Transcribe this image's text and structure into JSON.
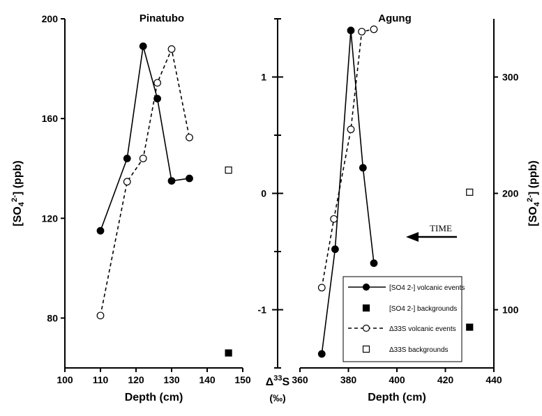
{
  "chart_data": [
    {
      "type": "line",
      "title": "Pinatubo",
      "xlabel": "Depth (cm)",
      "ylabel": "[SO4 2-] (ppb)",
      "xlim": [
        100,
        150
      ],
      "ylim": [
        60,
        200
      ],
      "x_ticks": [
        "100",
        "110",
        "120",
        "130",
        "140",
        "150"
      ],
      "y_ticks": [
        "80",
        "120",
        "160",
        "200"
      ],
      "series": [
        {
          "name": "[SO4 2-] volcanic events",
          "style": "solid-filled-circle",
          "axis": "sulfate",
          "points": [
            [
              110,
              115
            ],
            [
              117.5,
              144
            ],
            [
              122,
              189
            ],
            [
              126,
              168
            ],
            [
              130,
              135
            ],
            [
              135,
              136
            ]
          ]
        },
        {
          "name": "Δ33S volcanic events",
          "style": "dashed-open-circle",
          "axis": "d33s",
          "points": [
            [
              110,
              -1.05
            ],
            [
              117.5,
              0.1
            ],
            [
              122,
              0.3
            ],
            [
              126,
              0.95
            ],
            [
              130,
              1.24
            ],
            [
              135,
              0.48
            ]
          ]
        },
        {
          "name": "[SO4 2-] backgrounds",
          "style": "filled-square",
          "axis": "sulfate",
          "points": [
            [
              146,
              66
            ]
          ]
        },
        {
          "name": "Δ33S backgrounds",
          "style": "open-square",
          "axis": "d33s",
          "points": [
            [
              146,
              0.2
            ]
          ]
        }
      ]
    },
    {
      "type": "line",
      "title": "Agung",
      "xlabel": "Depth (cm)",
      "ylabel": "[SO4 2-] (ppb)",
      "xlim": [
        360,
        440
      ],
      "ylim": [
        50,
        350
      ],
      "x_ticks": [
        "360",
        "380",
        "400",
        "420",
        "440"
      ],
      "y_ticks": [
        "100",
        "200",
        "300"
      ],
      "series": [
        {
          "name": "[SO4 2-] volcanic events",
          "style": "solid-filled-circle",
          "axis": "sulfate",
          "points": [
            [
              369,
              62
            ],
            [
              374.5,
              152
            ],
            [
              381,
              340
            ],
            [
              386,
              222
            ],
            [
              390.5,
              140
            ]
          ]
        },
        {
          "name": "Δ33S volcanic events",
          "style": "dashed-open-circle",
          "axis": "d33s",
          "points": [
            [
              369,
              -0.81
            ],
            [
              374,
              -0.22
            ],
            [
              381,
              0.55
            ],
            [
              385.5,
              1.39
            ],
            [
              390.5,
              1.41
            ]
          ]
        },
        {
          "name": "[SO4 2-] backgrounds",
          "style": "filled-square",
          "axis": "sulfate",
          "points": [
            [
              430,
              85
            ]
          ]
        },
        {
          "name": "Δ33S backgrounds",
          "style": "open-square",
          "axis": "d33s",
          "points": [
            [
              430,
              0.01
            ]
          ]
        }
      ]
    }
  ],
  "middle_axis": {
    "label": "Δ33S",
    "unit": "(‰)",
    "ylim": [
      -1.5,
      1.5
    ],
    "ticks": [
      "-1",
      "0",
      "1"
    ]
  },
  "legend": {
    "entries": [
      {
        "style": "solid-filled-circle",
        "label": "[SO4 2-] volcanic events"
      },
      {
        "style": "filled-square",
        "label": "[SO4 2-] backgrounds"
      },
      {
        "style": "dashed-open-circle",
        "label": "Δ33S volcanic events"
      },
      {
        "style": "open-square",
        "label": "Δ33S backgrounds"
      }
    ]
  },
  "annotation": {
    "text": "TIME"
  }
}
